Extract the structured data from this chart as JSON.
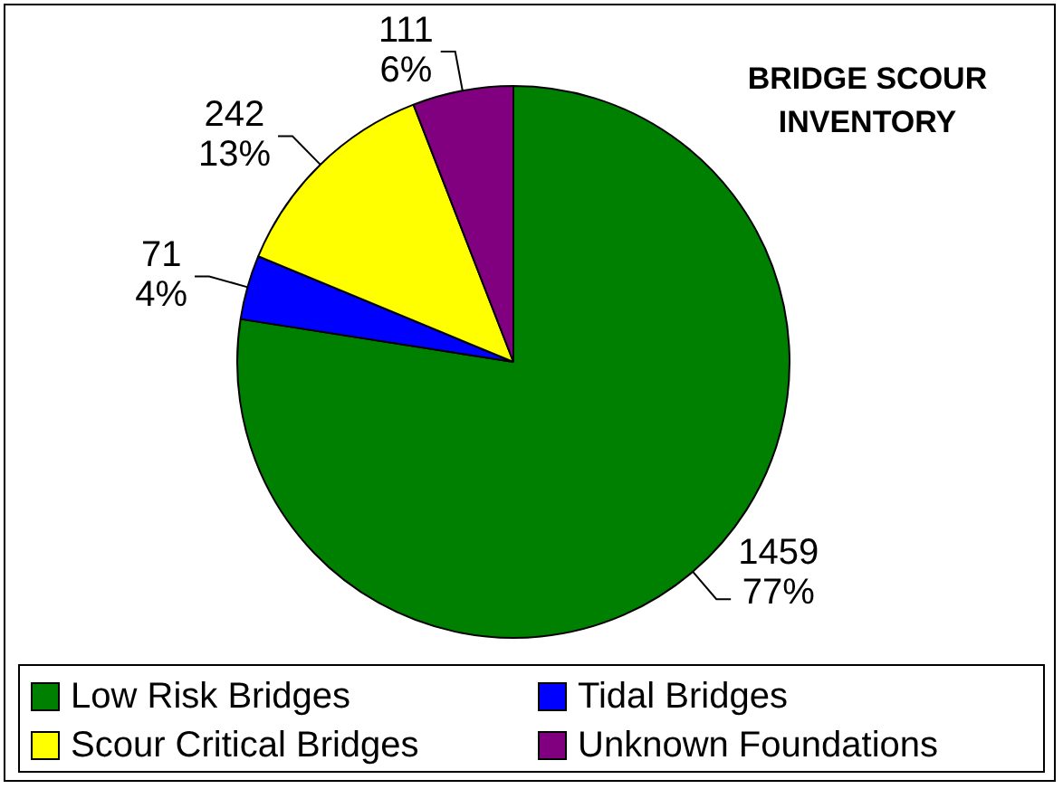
{
  "chart_data": {
    "type": "pie",
    "title": "BRIDGE SCOUR\nINVENTORY",
    "categories": [
      "Low Risk Bridges",
      "Tidal Bridges",
      "Scour Critical Bridges",
      "Unknown Foundations"
    ],
    "values": [
      1459,
      71,
      242,
      111
    ],
    "colors": [
      "#008000",
      "#0000ff",
      "#ffff00",
      "#800080"
    ],
    "value_labels": [
      "1459\n77%",
      "71\n4%",
      "242\n13%",
      "111\n6%"
    ],
    "legend": "bottom"
  }
}
